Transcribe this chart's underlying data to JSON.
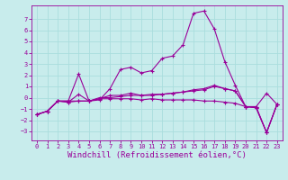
{
  "xlabel": "Windchill (Refroidissement éolien,°C)",
  "bg_color": "#c8ecec",
  "grid_color": "#aadddd",
  "line_color": "#990099",
  "x_ticks": [
    0,
    1,
    2,
    3,
    4,
    5,
    6,
    7,
    8,
    9,
    10,
    11,
    12,
    13,
    14,
    15,
    16,
    17,
    18,
    19,
    20,
    21,
    22,
    23
  ],
  "y_ticks": [
    -3,
    -2,
    -1,
    0,
    1,
    2,
    3,
    4,
    5,
    6,
    7
  ],
  "ylim": [
    -3.8,
    8.2
  ],
  "xlim": [
    -0.5,
    23.5
  ],
  "lines": [
    {
      "x": [
        0,
        1,
        2,
        3,
        4,
        5,
        6,
        7,
        8,
        9,
        10,
        11,
        12,
        13,
        14,
        15,
        16,
        17,
        18,
        19,
        20,
        21,
        22,
        23
      ],
      "y": [
        -1.5,
        -1.2,
        -0.3,
        -0.3,
        2.1,
        -0.3,
        -0.2,
        0.8,
        2.5,
        2.7,
        2.2,
        2.4,
        3.5,
        3.7,
        4.7,
        7.5,
        7.7,
        6.1,
        3.2,
        1.1,
        -0.8,
        -0.8,
        0.4,
        -0.6
      ]
    },
    {
      "x": [
        0,
        1,
        2,
        3,
        4,
        5,
        6,
        7,
        8,
        9,
        10,
        11,
        12,
        13,
        14,
        15,
        16,
        17,
        18,
        19,
        20,
        21,
        22,
        23
      ],
      "y": [
        -1.5,
        -1.2,
        -0.3,
        -0.4,
        -0.3,
        -0.3,
        0.0,
        0.0,
        0.1,
        0.2,
        0.2,
        0.3,
        0.3,
        0.4,
        0.5,
        0.7,
        0.8,
        1.1,
        0.8,
        0.6,
        -0.8,
        -0.9,
        -3.1,
        -0.6
      ]
    },
    {
      "x": [
        0,
        1,
        2,
        3,
        4,
        5,
        6,
        7,
        8,
        9,
        10,
        11,
        12,
        13,
        14,
        15,
        16,
        17,
        18,
        19,
        20,
        21,
        22,
        23
      ],
      "y": [
        -1.5,
        -1.2,
        -0.3,
        -0.3,
        -0.3,
        -0.3,
        -0.1,
        -0.1,
        -0.1,
        -0.1,
        -0.2,
        -0.1,
        -0.2,
        -0.2,
        -0.2,
        -0.2,
        -0.3,
        -0.3,
        -0.4,
        -0.5,
        -0.8,
        -0.9,
        -3.1,
        -0.6
      ]
    },
    {
      "x": [
        0,
        1,
        2,
        3,
        4,
        5,
        6,
        7,
        8,
        9,
        10,
        11,
        12,
        13,
        14,
        15,
        16,
        17,
        18,
        19,
        20,
        21,
        22,
        23
      ],
      "y": [
        -1.5,
        -1.2,
        -0.3,
        -0.4,
        0.3,
        -0.3,
        -0.1,
        0.2,
        0.2,
        0.4,
        0.2,
        0.2,
        0.3,
        0.4,
        0.5,
        0.6,
        0.7,
        1.0,
        0.8,
        0.6,
        -0.8,
        -0.8,
        -3.1,
        -0.6
      ]
    }
  ],
  "tick_fontsize": 5,
  "label_fontsize": 6.5
}
